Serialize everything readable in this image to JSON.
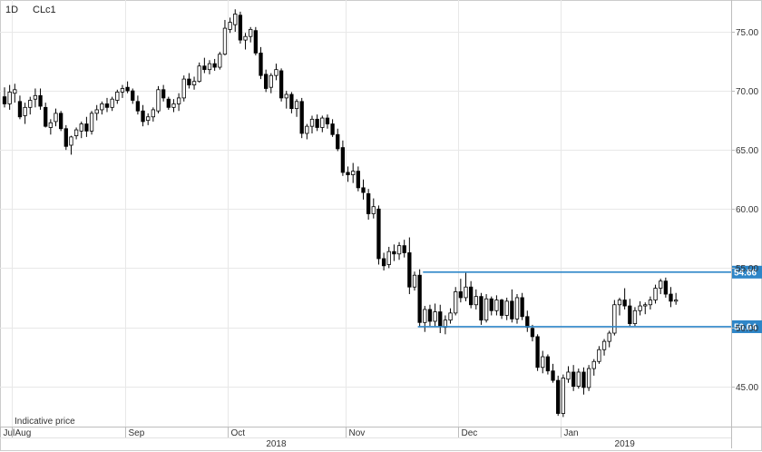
{
  "header": {
    "interval": "1D",
    "symbol": "CLc1"
  },
  "footnote": "Indicative price",
  "chart_data": {
    "type": "candlestick",
    "title": "",
    "xlabel": "",
    "ylabel": "",
    "y_axis_position": "right",
    "ylim": [
      41.5,
      77.5
    ],
    "y_ticks": [
      75,
      70,
      65,
      60,
      55,
      50,
      45
    ],
    "y_tick_labels": [
      "75.00",
      "70.00",
      "65.00",
      "60.00",
      "55.00",
      "50.00",
      "45.00"
    ],
    "x_month_labels": [
      {
        "label": "Jul",
        "index": -1
      },
      {
        "label": "Aug",
        "index": 2
      },
      {
        "label": "Sep",
        "index": 24
      },
      {
        "label": "Oct",
        "index": 44
      },
      {
        "label": "Nov",
        "index": 67
      },
      {
        "label": "Dec",
        "index": 89
      },
      {
        "label": "Jan",
        "index": 109
      }
    ],
    "x_year_labels": [
      {
        "label": "2018",
        "index": 53
      },
      {
        "label": "2019",
        "index": 121
      }
    ],
    "grid": true,
    "support_lines": [
      {
        "value": 54.66,
        "label": "54.66",
        "start_index": 82,
        "color": "#2e86c8"
      },
      {
        "value": 50.04,
        "label": "50.04",
        "start_index": 81,
        "color": "#2e86c8"
      }
    ],
    "candles": [
      [
        69.5,
        70.3,
        68.6,
        68.9
      ],
      [
        68.9,
        70.5,
        68.4,
        69.9
      ],
      [
        69.8,
        70.6,
        69.0,
        70.1
      ],
      [
        69.1,
        69.6,
        67.6,
        67.8
      ],
      [
        67.9,
        69.0,
        67.2,
        68.6
      ],
      [
        68.6,
        69.5,
        68.0,
        69.2
      ],
      [
        69.3,
        70.2,
        68.6,
        69.6
      ],
      [
        69.6,
        70.2,
        68.4,
        68.7
      ],
      [
        68.6,
        69.0,
        66.9,
        67.0
      ],
      [
        66.9,
        67.6,
        66.3,
        67.3
      ],
      [
        67.4,
        68.5,
        67.0,
        68.1
      ],
      [
        68.1,
        68.3,
        66.6,
        66.8
      ],
      [
        66.8,
        67.1,
        65.0,
        65.3
      ],
      [
        65.4,
        66.2,
        64.6,
        66.1
      ],
      [
        66.2,
        66.9,
        65.9,
        66.7
      ],
      [
        66.6,
        67.4,
        66.0,
        67.2
      ],
      [
        67.2,
        67.8,
        66.1,
        66.6
      ],
      [
        66.6,
        68.3,
        66.3,
        68.1
      ],
      [
        68.1,
        68.8,
        67.5,
        68.4
      ],
      [
        68.4,
        69.1,
        68.0,
        68.9
      ],
      [
        68.9,
        69.4,
        68.2,
        68.6
      ],
      [
        68.6,
        69.5,
        68.3,
        69.3
      ],
      [
        69.2,
        70.1,
        68.9,
        69.9
      ],
      [
        69.9,
        70.5,
        69.4,
        70.2
      ],
      [
        70.3,
        70.8,
        69.8,
        70.0
      ],
      [
        70.0,
        70.2,
        68.9,
        69.2
      ],
      [
        69.1,
        69.6,
        68.0,
        68.3
      ],
      [
        68.3,
        68.8,
        67.0,
        67.4
      ],
      [
        67.5,
        68.1,
        67.1,
        67.8
      ],
      [
        67.8,
        68.6,
        67.4,
        68.4
      ],
      [
        68.3,
        70.4,
        68.1,
        70.1
      ],
      [
        70.1,
        70.5,
        69.1,
        69.4
      ],
      [
        69.3,
        69.5,
        68.4,
        68.6
      ],
      [
        68.6,
        69.3,
        68.2,
        68.9
      ],
      [
        68.9,
        69.8,
        68.3,
        69.4
      ],
      [
        69.4,
        71.3,
        69.1,
        71.0
      ],
      [
        71.0,
        71.5,
        70.2,
        70.5
      ],
      [
        70.5,
        71.2,
        70.1,
        70.8
      ],
      [
        70.8,
        72.4,
        70.7,
        72.1
      ],
      [
        72.1,
        72.8,
        71.5,
        71.8
      ],
      [
        71.8,
        72.6,
        71.4,
        72.3
      ],
      [
        72.3,
        72.7,
        71.7,
        72.0
      ],
      [
        72.0,
        73.3,
        71.8,
        73.1
      ],
      [
        73.1,
        76.0,
        73.0,
        75.3
      ],
      [
        75.2,
        76.2,
        74.9,
        75.8
      ],
      [
        75.6,
        76.9,
        75.0,
        76.5
      ],
      [
        76.4,
        76.7,
        74.0,
        74.3
      ],
      [
        74.3,
        74.9,
        73.5,
        74.6
      ],
      [
        74.6,
        75.4,
        74.1,
        75.2
      ],
      [
        75.1,
        75.4,
        73.0,
        73.2
      ],
      [
        73.2,
        73.7,
        71.0,
        71.3
      ],
      [
        71.4,
        71.8,
        69.9,
        70.2
      ],
      [
        70.3,
        71.5,
        69.8,
        71.3
      ],
      [
        71.3,
        72.3,
        70.9,
        71.8
      ],
      [
        71.7,
        71.9,
        69.1,
        69.4
      ],
      [
        69.4,
        70.0,
        68.5,
        69.7
      ],
      [
        69.7,
        69.9,
        68.1,
        68.5
      ],
      [
        68.5,
        69.3,
        67.8,
        69.1
      ],
      [
        69.1,
        69.4,
        66.0,
        66.4
      ],
      [
        66.4,
        67.2,
        65.9,
        67.0
      ],
      [
        67.0,
        67.9,
        66.4,
        67.6
      ],
      [
        67.6,
        68.0,
        66.6,
        66.9
      ],
      [
        66.9,
        67.9,
        66.5,
        67.7
      ],
      [
        67.7,
        68.0,
        66.8,
        67.2
      ],
      [
        67.2,
        67.6,
        66.1,
        66.3
      ],
      [
        66.3,
        66.8,
        64.9,
        65.1
      ],
      [
        65.2,
        65.8,
        62.8,
        63.1
      ],
      [
        63.1,
        63.6,
        62.3,
        62.9
      ],
      [
        62.9,
        63.9,
        62.2,
        63.2
      ],
      [
        63.2,
        63.6,
        61.5,
        61.8
      ],
      [
        61.8,
        62.5,
        60.8,
        61.4
      ],
      [
        61.3,
        61.7,
        59.1,
        59.6
      ],
      [
        59.6,
        60.9,
        59.2,
        60.2
      ],
      [
        60.0,
        60.3,
        55.3,
        55.8
      ],
      [
        55.8,
        56.3,
        54.8,
        55.2
      ],
      [
        55.3,
        56.8,
        55.0,
        56.4
      ],
      [
        56.4,
        57.0,
        55.6,
        56.2
      ],
      [
        56.2,
        57.2,
        55.7,
        56.9
      ],
      [
        56.9,
        57.4,
        55.9,
        56.3
      ],
      [
        56.3,
        57.6,
        52.8,
        53.4
      ],
      [
        53.4,
        54.7,
        53.1,
        54.4
      ],
      [
        54.4,
        54.9,
        50.0,
        50.4
      ],
      [
        50.4,
        51.8,
        49.6,
        51.5
      ],
      [
        51.5,
        51.9,
        50.1,
        50.5
      ],
      [
        50.5,
        52.0,
        50.0,
        51.3
      ],
      [
        51.3,
        51.9,
        49.5,
        50.1
      ],
      [
        50.0,
        51.0,
        49.4,
        50.6
      ],
      [
        50.6,
        51.6,
        50.3,
        51.2
      ],
      [
        51.2,
        53.4,
        51.0,
        53.0
      ],
      [
        53.0,
        54.1,
        52.1,
        52.5
      ],
      [
        52.5,
        54.6,
        52.2,
        53.4
      ],
      [
        53.4,
        53.9,
        51.6,
        51.9
      ],
      [
        51.9,
        53.2,
        51.5,
        52.6
      ],
      [
        52.6,
        52.9,
        50.2,
        50.6
      ],
      [
        50.6,
        52.8,
        50.4,
        52.4
      ],
      [
        52.4,
        52.6,
        51.0,
        51.4
      ],
      [
        51.4,
        52.7,
        51.0,
        52.3
      ],
      [
        52.3,
        52.4,
        50.7,
        51.0
      ],
      [
        51.0,
        52.5,
        50.6,
        52.2
      ],
      [
        52.2,
        53.2,
        50.4,
        50.7
      ],
      [
        50.7,
        52.8,
        50.3,
        52.5
      ],
      [
        52.5,
        52.9,
        50.6,
        50.9
      ],
      [
        50.9,
        51.4,
        49.6,
        50.0
      ],
      [
        49.9,
        50.2,
        48.8,
        49.2
      ],
      [
        49.2,
        49.4,
        46.3,
        46.6
      ],
      [
        46.6,
        48.0,
        46.1,
        47.5
      ],
      [
        47.5,
        47.7,
        46.0,
        46.3
      ],
      [
        46.3,
        46.9,
        45.3,
        45.5
      ],
      [
        45.5,
        45.9,
        42.5,
        42.7
      ],
      [
        42.7,
        46.0,
        42.4,
        45.7
      ],
      [
        45.6,
        46.7,
        45.3,
        46.2
      ],
      [
        46.2,
        46.8,
        44.6,
        45.0
      ],
      [
        45.0,
        46.5,
        44.8,
        46.2
      ],
      [
        46.2,
        46.6,
        44.3,
        44.9
      ],
      [
        44.9,
        46.8,
        44.6,
        46.5
      ],
      [
        46.5,
        47.3,
        45.9,
        47.1
      ],
      [
        47.1,
        48.4,
        46.9,
        48.1
      ],
      [
        48.1,
        49.0,
        47.6,
        48.8
      ],
      [
        48.8,
        49.7,
        48.3,
        49.5
      ],
      [
        49.5,
        52.3,
        49.3,
        51.9
      ],
      [
        51.9,
        52.5,
        51.0,
        52.3
      ],
      [
        52.3,
        53.3,
        51.5,
        51.8
      ],
      [
        51.8,
        52.4,
        50.1,
        50.3
      ],
      [
        50.3,
        51.7,
        50.1,
        51.4
      ],
      [
        51.4,
        52.2,
        51.0,
        51.8
      ],
      [
        51.8,
        52.1,
        51.1,
        51.9
      ],
      [
        51.9,
        52.6,
        51.5,
        52.3
      ],
      [
        52.3,
        53.6,
        52.0,
        53.3
      ],
      [
        53.3,
        54.1,
        52.8,
        53.9
      ],
      [
        53.9,
        54.2,
        52.5,
        52.8
      ],
      [
        52.8,
        53.4,
        51.7,
        52.2
      ],
      [
        52.2,
        52.9,
        51.9,
        52.3
      ]
    ]
  }
}
